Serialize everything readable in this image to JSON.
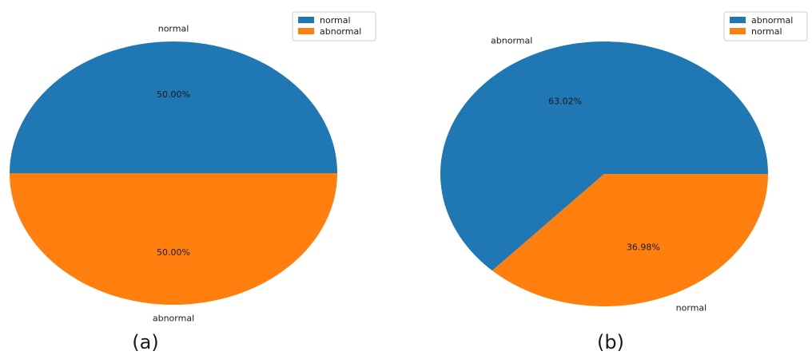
{
  "chart_data": [
    {
      "type": "pie",
      "caption": "(a)",
      "legend_position": "top-right",
      "slices": [
        {
          "label": "normal",
          "percent": 50.0,
          "display": "50.00%",
          "color": "#1f77b4"
        },
        {
          "label": "abnormal",
          "percent": 50.0,
          "display": "50.00%",
          "color": "#ff7f0e"
        }
      ]
    },
    {
      "type": "pie",
      "caption": "(b)",
      "legend_position": "top-right",
      "slices": [
        {
          "label": "abnormal",
          "percent": 63.02,
          "display": "63.02%",
          "color": "#1f77b4"
        },
        {
          "label": "normal",
          "percent": 36.98,
          "display": "36.98%",
          "color": "#ff7f0e"
        }
      ]
    }
  ]
}
